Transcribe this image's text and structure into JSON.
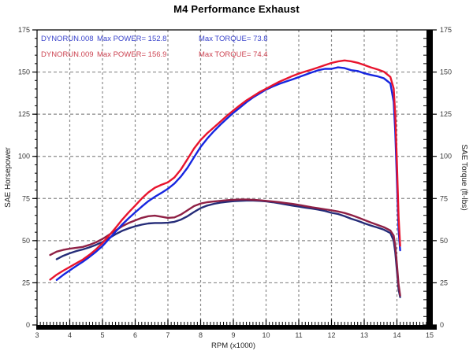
{
  "title": "M4 Performance Exhaust",
  "legend": {
    "runs": [
      {
        "file": "DYNORUN.008",
        "power_label": "Max POWER= 152.8",
        "torque_label": "Max TORQUE= 73.8",
        "text_color": "#3c46cc"
      },
      {
        "file": "DYNORUN.009",
        "power_label": "Max POWER= 156.9",
        "torque_label": "Max TORQUE= 74.4",
        "text_color": "#cc4452"
      }
    ]
  },
  "chart_data": {
    "type": "line",
    "title": "M4 Performance Exhaust",
    "xlabel": "RPM (x1000)",
    "ylabel_left": "SAE Horsepower",
    "ylabel_right": "SAE Torque (ft-lbs)",
    "xlim": [
      3,
      15
    ],
    "ylim": [
      0,
      175
    ],
    "x_ticks": [
      3,
      4,
      5,
      6,
      7,
      8,
      9,
      10,
      11,
      12,
      13,
      14,
      15
    ],
    "y_ticks": [
      0,
      25,
      50,
      75,
      100,
      125,
      150,
      175
    ],
    "x_minor_step": 0.1,
    "y_minor_step": 5,
    "grid": true,
    "grid_color": "#8a8a8a",
    "frame_color": "#000000",
    "tick_label_color": "#3a3a3a",
    "max_values": {
      "power_008": 152.8,
      "power_009": 156.9,
      "torque_008": 73.8,
      "torque_009": 74.4
    },
    "series": [
      {
        "name": "DYNORUN.008 torque",
        "axis": "right",
        "color": "#252c78",
        "width": 2.4,
        "x": [
          3.6,
          3.8,
          4,
          4.2,
          4.4,
          4.6,
          4.8,
          5,
          5.2,
          5.4,
          5.6,
          5.8,
          6,
          6.2,
          6.4,
          6.6,
          6.8,
          7,
          7.2,
          7.4,
          7.6,
          7.8,
          8,
          8.2,
          8.4,
          8.6,
          8.8,
          9,
          9.2,
          9.4,
          9.6,
          9.8,
          10,
          10.2,
          10.4,
          10.6,
          10.8,
          11,
          11.2,
          11.4,
          11.6,
          11.8,
          12,
          12.2,
          12.4,
          12.6,
          12.8,
          13,
          13.2,
          13.4,
          13.6,
          13.8,
          13.9,
          13.95,
          14,
          14.05,
          14.1
        ],
        "y": [
          39,
          41,
          42.5,
          43.8,
          44.8,
          46,
          47.5,
          49.2,
          51.5,
          53.8,
          55.8,
          57.3,
          58.5,
          59.5,
          60.2,
          60.5,
          60.5,
          60.6,
          61.2,
          62.5,
          64.5,
          67,
          69.3,
          70.8,
          71.8,
          72.5,
          73,
          73.4,
          73.6,
          73.8,
          73.8,
          73.6,
          73.3,
          72.8,
          72.2,
          71.5,
          70.8,
          70.2,
          69.6,
          69,
          68.4,
          67.6,
          66.5,
          65.8,
          64.5,
          63,
          61.8,
          60.3,
          59,
          57.8,
          56.5,
          54.5,
          50,
          43,
          32,
          21,
          16.5
        ]
      },
      {
        "name": "DYNORUN.009 torque",
        "axis": "right",
        "color": "#8f2045",
        "width": 2.4,
        "x": [
          3.4,
          3.6,
          3.8,
          4,
          4.2,
          4.4,
          4.6,
          4.8,
          5,
          5.2,
          5.4,
          5.6,
          5.8,
          6,
          6.2,
          6.4,
          6.6,
          6.8,
          7,
          7.2,
          7.4,
          7.6,
          7.8,
          8,
          8.2,
          8.4,
          8.6,
          8.8,
          9,
          9.2,
          9.4,
          9.6,
          9.8,
          10,
          10.2,
          10.4,
          10.6,
          10.8,
          11,
          11.2,
          11.4,
          11.6,
          11.8,
          12,
          12.2,
          12.4,
          12.6,
          12.8,
          13,
          13.2,
          13.4,
          13.6,
          13.8,
          13.9,
          13.95,
          14,
          14.05,
          14.1
        ],
        "y": [
          41.5,
          43.5,
          44.5,
          45.2,
          45.8,
          46.3,
          47.5,
          49,
          51,
          53.5,
          56,
          58.5,
          60.5,
          62,
          63.5,
          64.5,
          64.8,
          64.2,
          63.5,
          63.8,
          65.5,
          68,
          70.5,
          72,
          72.8,
          73.2,
          73.6,
          74,
          74.2,
          74.4,
          74.4,
          74.2,
          74,
          73.6,
          73.2,
          72.8,
          72.3,
          71.8,
          71.2,
          70.5,
          69.8,
          69.2,
          68.6,
          68,
          67.3,
          66.4,
          65.2,
          63.8,
          62.3,
          60.8,
          59.4,
          58,
          56,
          53,
          47,
          36,
          24,
          17.5
        ]
      },
      {
        "name": "DYNORUN.008 power",
        "axis": "left",
        "color": "#1626e0",
        "width": 2.4,
        "x": [
          3.6,
          3.8,
          4,
          4.2,
          4.4,
          4.6,
          4.8,
          5,
          5.2,
          5.4,
          5.6,
          5.8,
          6,
          6.2,
          6.4,
          6.6,
          6.8,
          7,
          7.2,
          7.4,
          7.6,
          7.8,
          8,
          8.2,
          8.4,
          8.6,
          8.8,
          9,
          9.2,
          9.4,
          9.6,
          9.8,
          10,
          10.2,
          10.4,
          10.6,
          10.8,
          11,
          11.2,
          11.4,
          11.6,
          11.8,
          12,
          12.2,
          12.4,
          12.6,
          12.8,
          13,
          13.2,
          13.4,
          13.6,
          13.8,
          13.9,
          13.95,
          14,
          14.05,
          14.1
        ],
        "y": [
          26.7,
          29.7,
          32.4,
          35,
          37.5,
          40.3,
          43.4,
          46.8,
          51,
          55.3,
          59.5,
          63.3,
          66.8,
          70.2,
          73.4,
          76,
          78.3,
          80.8,
          83.9,
          88.1,
          93.3,
          99.5,
          105.6,
          110.5,
          114.8,
          118.7,
          122.3,
          125.8,
          128.9,
          132.1,
          134.9,
          137.3,
          139.6,
          141.4,
          143,
          144.3,
          145.6,
          147,
          148.4,
          149.8,
          151.1,
          151.9,
          151.9,
          152.8,
          152.3,
          151.1,
          150.6,
          149.3,
          148.3,
          147.5,
          146.3,
          143.2,
          132.3,
          114.2,
          85.3,
          56.2,
          44.3
        ]
      },
      {
        "name": "DYNORUN.009 power",
        "axis": "left",
        "color": "#e8142e",
        "width": 2.4,
        "x": [
          3.4,
          3.6,
          3.8,
          4,
          4.2,
          4.4,
          4.6,
          4.8,
          5,
          5.2,
          5.4,
          5.6,
          5.8,
          6,
          6.2,
          6.4,
          6.6,
          6.8,
          7,
          7.2,
          7.4,
          7.6,
          7.8,
          8,
          8.2,
          8.4,
          8.6,
          8.8,
          9,
          9.2,
          9.4,
          9.6,
          9.8,
          10,
          10.2,
          10.4,
          10.6,
          10.8,
          11,
          11.2,
          11.4,
          11.6,
          11.8,
          12,
          12.2,
          12.4,
          12.6,
          12.8,
          13,
          13.2,
          13.4,
          13.6,
          13.8,
          13.9,
          13.95,
          14,
          14.05,
          14.1
        ],
        "y": [
          26.9,
          29.8,
          32.2,
          34.4,
          36.6,
          38.8,
          41.6,
          44.8,
          48.6,
          53,
          57.6,
          62.4,
          66.8,
          70.8,
          75,
          78.6,
          81.4,
          83.1,
          84.6,
          87.5,
          92.3,
          98.4,
          104.7,
          109.7,
          113.7,
          117.1,
          120.5,
          124,
          127.2,
          130.3,
          133.2,
          135.6,
          138.1,
          140.1,
          142.2,
          144.2,
          145.9,
          147.6,
          149.1,
          150.3,
          151.5,
          152.8,
          154.1,
          155.4,
          156.3,
          156.9,
          156.4,
          155.5,
          154.2,
          152.8,
          151.6,
          150.2,
          147.1,
          140.3,
          124.8,
          96,
          64.2,
          47
        ]
      }
    ]
  }
}
